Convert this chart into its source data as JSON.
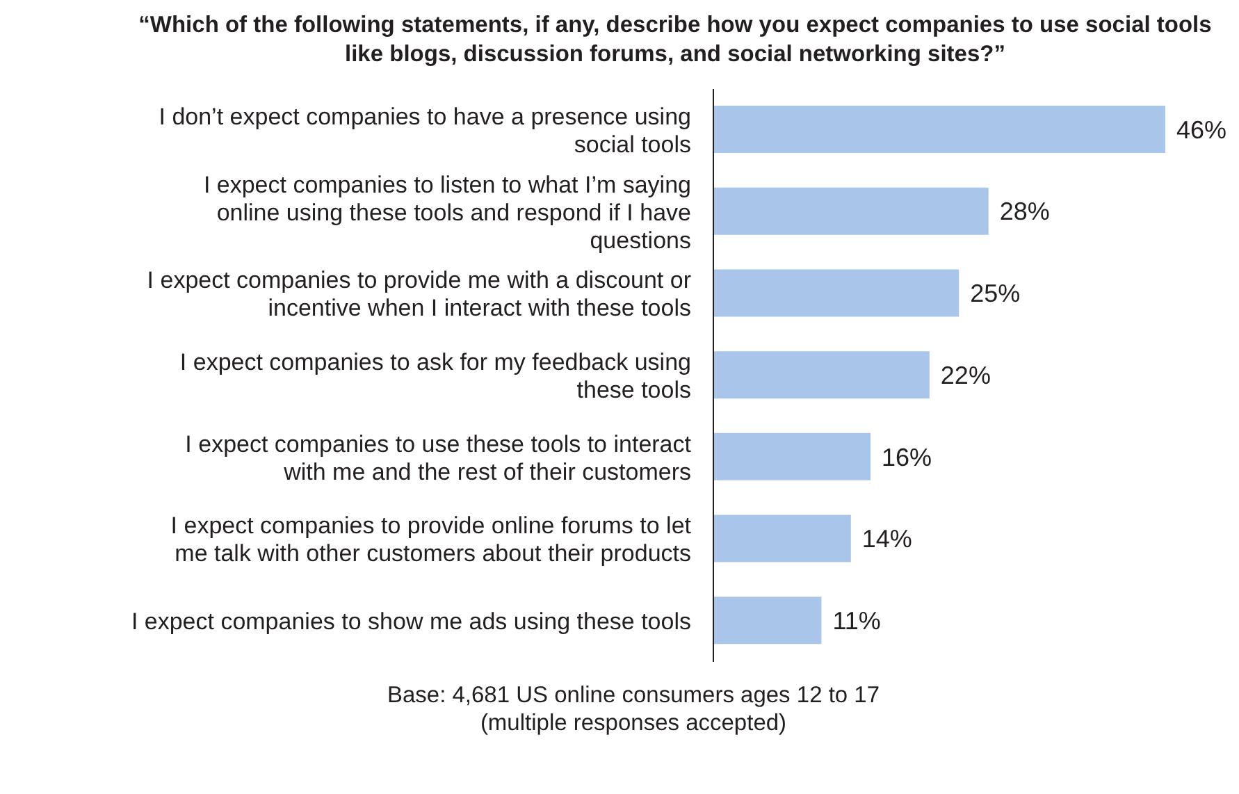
{
  "chart_data": {
    "type": "bar",
    "orientation": "horizontal",
    "title": "“Which of the following statements, if any, describe how you expect companies to use social tools like blogs, discussion forums, and social networking sites?”",
    "categories": [
      "I don’t expect companies to have a presence using social tools",
      "I expect companies to listen to what I’m saying online using these tools and respond if I have questions",
      "I expect companies to provide me with a discount or incentive when I interact with these tools",
      "I expect companies to ask for my feedback using these tools",
      "I expect companies to use these tools to interact with me and the rest of their customers",
      "I expect companies to provide online forums to let me talk with other customers about their products",
      "I expect companies to show me ads using these tools"
    ],
    "values": [
      46,
      28,
      25,
      22,
      16,
      14,
      11
    ],
    "value_labels": [
      "46%",
      "28%",
      "25%",
      "22%",
      "16%",
      "14%",
      "11%"
    ],
    "color": "#a9c5ea",
    "annotations": [
      "Base: 4,681 US online consumers ages 12 to 17",
      "(multiple responses accepted)"
    ]
  }
}
